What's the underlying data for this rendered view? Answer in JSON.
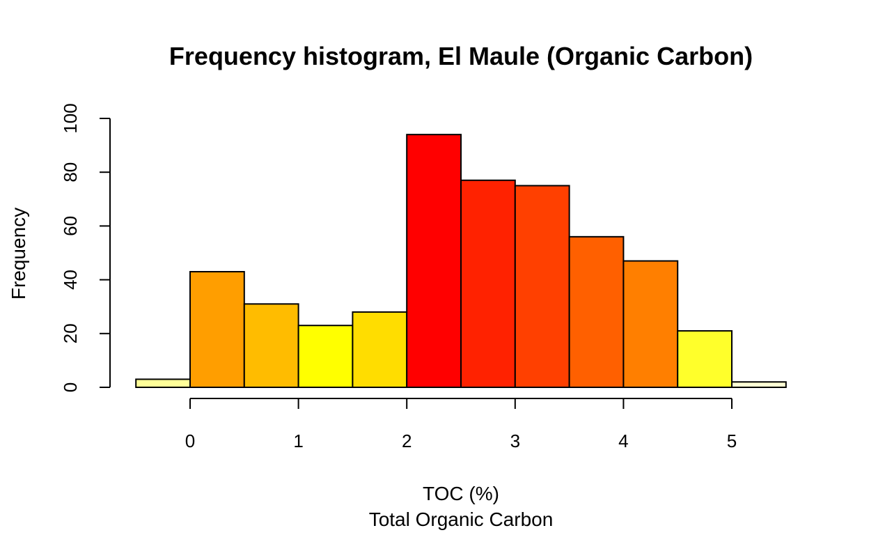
{
  "chart_data": {
    "type": "bar",
    "title": "Frequency histogram, El Maule (Organic Carbon)",
    "xlabel": "TOC (%)",
    "subtitle": "Total Organic Carbon",
    "ylabel": "Frequency",
    "bins": [
      {
        "x0": -0.5,
        "x1": 0.0,
        "count": 3,
        "color": "#FFFF99"
      },
      {
        "x0": 0.0,
        "x1": 0.5,
        "count": 43,
        "color": "#FF9E00"
      },
      {
        "x0": 0.5,
        "x1": 1.0,
        "count": 31,
        "color": "#FFBC00"
      },
      {
        "x0": 1.0,
        "x1": 1.5,
        "count": 23,
        "color": "#FFFF00"
      },
      {
        "x0": 1.5,
        "x1": 2.0,
        "count": 28,
        "color": "#FFDD00"
      },
      {
        "x0": 2.0,
        "x1": 2.5,
        "count": 94,
        "color": "#FF0000"
      },
      {
        "x0": 2.5,
        "x1": 3.0,
        "count": 77,
        "color": "#FF2200"
      },
      {
        "x0": 3.0,
        "x1": 3.5,
        "count": 75,
        "color": "#FF4000"
      },
      {
        "x0": 3.5,
        "x1": 4.0,
        "count": 56,
        "color": "#FF6000"
      },
      {
        "x0": 4.0,
        "x1": 4.5,
        "count": 47,
        "color": "#FF7F00"
      },
      {
        "x0": 4.5,
        "x1": 5.0,
        "count": 21,
        "color": "#FFFF2B"
      },
      {
        "x0": 5.0,
        "x1": 5.5,
        "count": 2,
        "color": "#FFFFD5"
      }
    ],
    "xlim": [
      -0.5,
      5.5
    ],
    "ylim": [
      0,
      100
    ],
    "xticks": [
      0,
      1,
      2,
      3,
      4,
      5
    ],
    "yticks": [
      0,
      20,
      40,
      60,
      80,
      100
    ],
    "grid": false,
    "legend": "none"
  }
}
